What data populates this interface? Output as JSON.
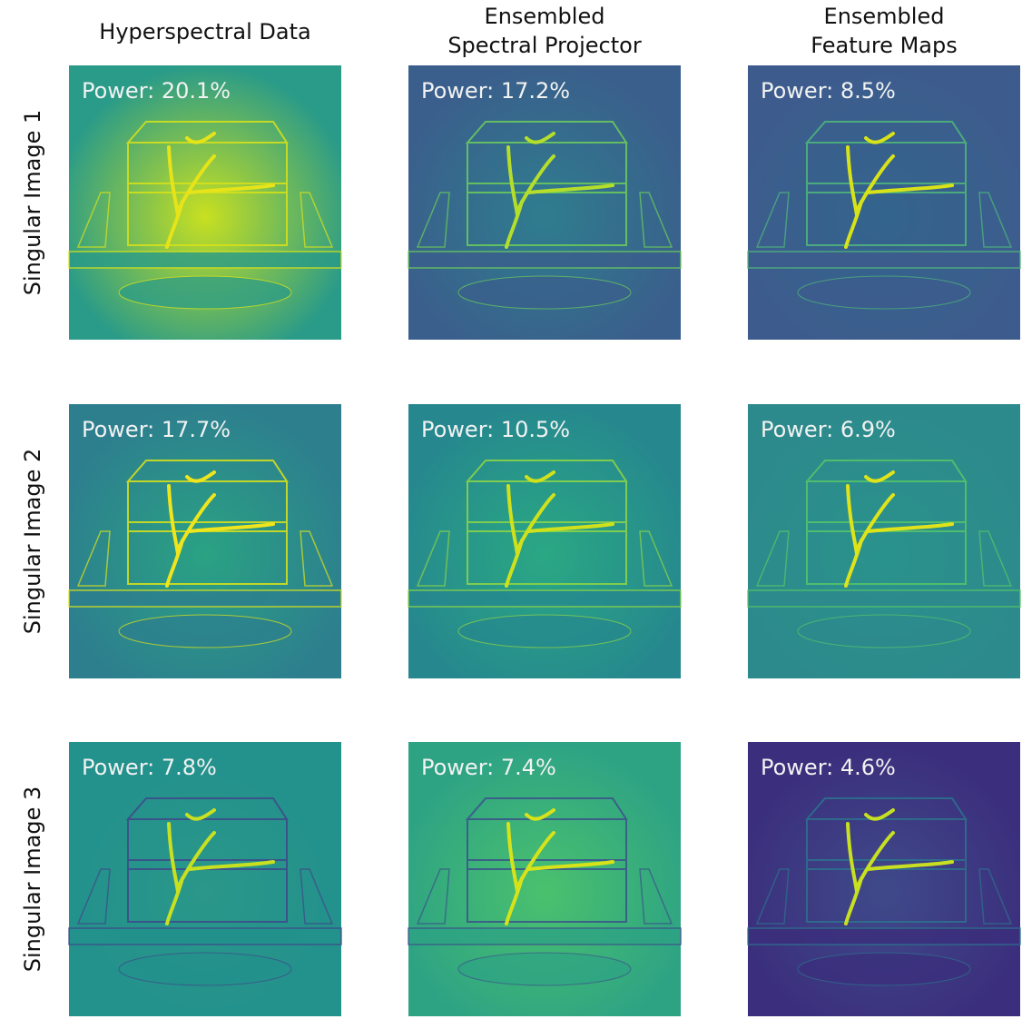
{
  "columns": [
    [
      "Hyperspectral Data"
    ],
    [
      "Ensembled",
      "Spectral Projector"
    ],
    [
      "Ensembled",
      "Feature Maps"
    ]
  ],
  "rows": [
    {
      "label": "Singular Image 1",
      "panels": [
        "Power: 20.1%",
        "Power: 17.2%",
        "Power: 8.5%"
      ]
    },
    {
      "label": "Singular Image 2",
      "panels": [
        "Power: 17.7%",
        "Power: 10.5%",
        "Power: 6.9%"
      ]
    },
    {
      "label": "Singular Image 3",
      "panels": [
        "Power: 7.8%",
        "Power: 7.4%",
        "Power: 4.6%"
      ]
    }
  ]
}
